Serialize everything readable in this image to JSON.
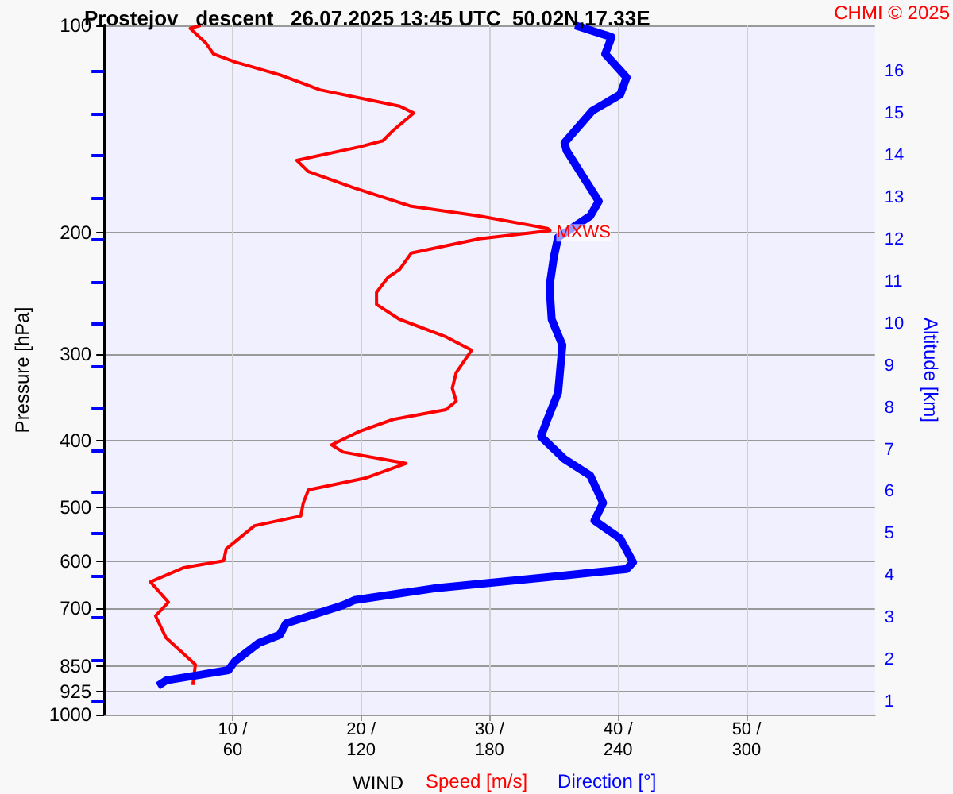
{
  "chart_data": {
    "type": "line",
    "title": "Prostejov   descent   26.07.2025 13:45 UTC  50.02N,17.33E",
    "xlabel": "WIND",
    "ylabel": "Pressure [hPa]",
    "y2label": "Altitude [km]",
    "annotations": [
      "CHMI © 2025",
      {
        "text": "MXWS",
        "x": 34.7,
        "y": 200
      }
    ],
    "xlim": [
      0,
      60
    ],
    "xticks": [
      {
        "value": 10,
        "label": "10 /"
      },
      {
        "value": 20,
        "label": "20 /"
      },
      {
        "value": 30,
        "label": "30 /"
      },
      {
        "value": 40,
        "label": "40 /"
      },
      {
        "value": 50,
        "label": "50 /"
      }
    ],
    "x2lim": [
      0,
      360
    ],
    "x2ticks": [
      60,
      120,
      180,
      240,
      300
    ],
    "ylim": [
      1000,
      100
    ],
    "yticks": [
      100,
      200,
      300,
      400,
      500,
      600,
      700,
      850,
      925,
      1000
    ],
    "log": true,
    "y2lim": [
      0.7,
      17.1
    ],
    "y2ticks": [
      1,
      2,
      3,
      4,
      5,
      6,
      7,
      8,
      9,
      10,
      11,
      12,
      13,
      14,
      15,
      16
    ],
    "grid": true,
    "legend": "bottom",
    "marker": "none",
    "series": [
      {
        "name": "Speed [m/s]",
        "color": "#ff0000",
        "x": [
          7.5,
          6.7,
          7.9,
          8.5,
          10.2,
          13.7,
          16.8,
          23.0,
          24.1,
          22.5,
          21.7,
          19.9,
          15.0,
          15.9,
          19.4,
          23.9,
          29.2,
          34.5,
          34.7,
          29.2,
          23.9,
          23.0,
          22.1,
          21.2,
          21.2,
          23.0,
          26.6,
          28.6,
          27.4,
          27.1,
          27.4,
          26.6,
          22.5,
          19.9,
          17.7,
          18.6,
          23.5,
          20.3,
          15.9,
          15.5,
          15.3,
          11.7,
          9.5,
          9.3,
          6.2,
          3.6,
          5.0,
          4.0,
          4.8,
          7.1,
          6.9
        ],
        "values": [
          100,
          101,
          106,
          110,
          113,
          118,
          124,
          131,
          134,
          142,
          147,
          150,
          157,
          163,
          172,
          183,
          189,
          197,
          198.5,
          204,
          214,
          226,
          232,
          244,
          254,
          267,
          283,
          296,
          319,
          336,
          351,
          361,
          373,
          388,
          406,
          416,
          432,
          454,
          472,
          493,
          515,
          532,
          575,
          598,
          612,
          642,
          687,
          719,
          773,
          846,
          906
        ]
      },
      {
        "name": "Direction [°]",
        "color": "#0000ff",
        "axis": "x2",
        "x": [
          220,
          233,
          237,
          234,
          244,
          241,
          228,
          215,
          216,
          231,
          227,
          212,
          210,
          208,
          209,
          214,
          212,
          207,
          204,
          215,
          227,
          233,
          229,
          241,
          247,
          244,
          207,
          154,
          117,
          111,
          85,
          82,
          72,
          61,
          58,
          29,
          25
        ],
        "values": [
          100,
          103,
          104,
          110,
          119,
          126,
          133,
          148,
          152,
          180,
          189,
          203,
          217,
          239,
          267,
          291,
          341,
          373,
          395,
          426,
          450,
          493,
          523,
          555,
          601,
          615,
          632,
          656,
          682,
          695,
          737,
          766,
          788,
          837,
          862,
          892,
          909
        ]
      }
    ]
  }
}
